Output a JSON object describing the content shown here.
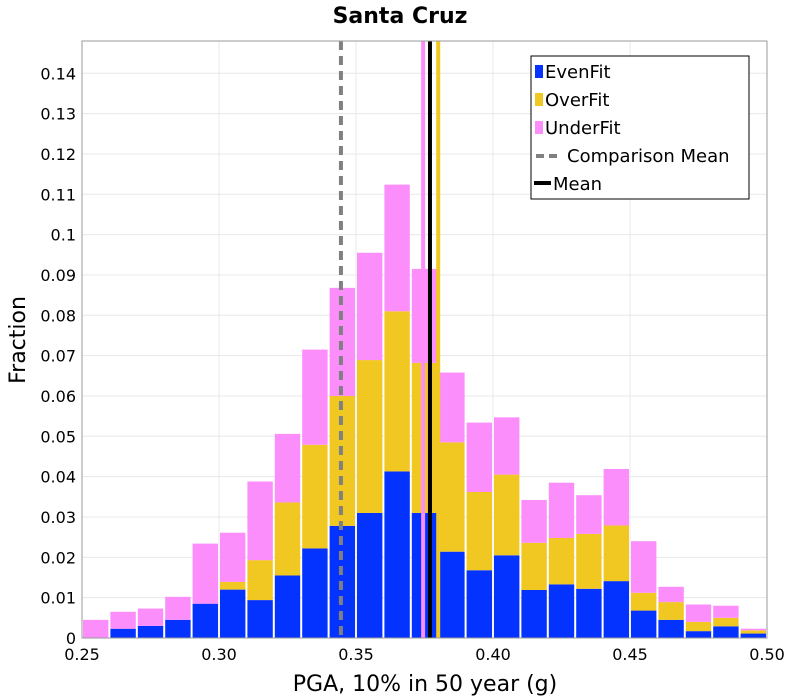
{
  "chart_data": {
    "type": "bar",
    "stacked": true,
    "title": "Santa Cruz",
    "xlabel": "PGA, 10% in 50 year (g)",
    "ylabel": "Fraction",
    "xlim": [
      0.25,
      0.5
    ],
    "ylim": [
      0,
      0.148
    ],
    "grid": true,
    "legend_position": "top-right",
    "bin_width": 0.01,
    "x": [
      0.255,
      0.265,
      0.275,
      0.285,
      0.295,
      0.305,
      0.315,
      0.325,
      0.335,
      0.345,
      0.355,
      0.365,
      0.375,
      0.385,
      0.395,
      0.405,
      0.415,
      0.425,
      0.435,
      0.445,
      0.455,
      0.465,
      0.475,
      0.485,
      0.495
    ],
    "x_ticks": [
      "0.25",
      "0.30",
      "0.35",
      "0.40",
      "0.45",
      "0.50"
    ],
    "y_ticks": [
      "0",
      "0.01",
      "0.02",
      "0.03",
      "0.04",
      "0.05",
      "0.06",
      "0.07",
      "0.08",
      "0.09",
      "0.1",
      "0.11",
      "0.12",
      "0.13",
      "0.14"
    ],
    "series": [
      {
        "name": "EvenFit",
        "color": "#0433ff",
        "values": [
          0.0,
          0.0023,
          0.003,
          0.0045,
          0.0085,
          0.012,
          0.0094,
          0.0155,
          0.0222,
          0.0278,
          0.031,
          0.0413,
          0.031,
          0.0214,
          0.0168,
          0.0205,
          0.0119,
          0.0133,
          0.0122,
          0.0141,
          0.0068,
          0.0045,
          0.0017,
          0.0029,
          0.0011
        ]
      },
      {
        "name": "OverFit",
        "color": "#f1c722",
        "values": [
          0.0,
          0.0,
          0.0,
          0.0,
          0.0,
          0.0019,
          0.0099,
          0.0181,
          0.0257,
          0.0322,
          0.0379,
          0.0397,
          0.0372,
          0.0271,
          0.0194,
          0.02,
          0.0117,
          0.0115,
          0.0136,
          0.0138,
          0.0044,
          0.0044,
          0.0023,
          0.0021,
          0.0008
        ]
      },
      {
        "name": "UnderFit",
        "color": "#fb8efb",
        "values": [
          0.0045,
          0.0042,
          0.0043,
          0.0057,
          0.0149,
          0.0122,
          0.0195,
          0.017,
          0.0236,
          0.0268,
          0.0266,
          0.0314,
          0.0233,
          0.0173,
          0.0172,
          0.0142,
          0.0106,
          0.0137,
          0.0096,
          0.014,
          0.0128,
          0.0038,
          0.0043,
          0.003,
          0.0004
        ]
      }
    ],
    "lines": [
      {
        "name": "UnderFit mean",
        "x": 0.3745,
        "color": "#fb8efb",
        "style": "solid"
      },
      {
        "name": "OverFit mean",
        "x": 0.38,
        "color": "#f1c722",
        "style": "solid"
      },
      {
        "name": "Comparison Mean",
        "x": 0.3445,
        "color": "#808080",
        "style": "dashed"
      },
      {
        "name": "Mean",
        "x": 0.377,
        "color": "#000000",
        "style": "solid"
      }
    ],
    "legend": [
      {
        "label": "EvenFit",
        "type": "box",
        "color": "#0433ff"
      },
      {
        "label": "OverFit",
        "type": "box",
        "color": "#f1c722"
      },
      {
        "label": "UnderFit",
        "type": "box",
        "color": "#fb8efb"
      },
      {
        "label": "Comparison Mean",
        "type": "dashed",
        "color": "#808080"
      },
      {
        "label": "Mean",
        "type": "solid",
        "color": "#000000"
      }
    ]
  }
}
